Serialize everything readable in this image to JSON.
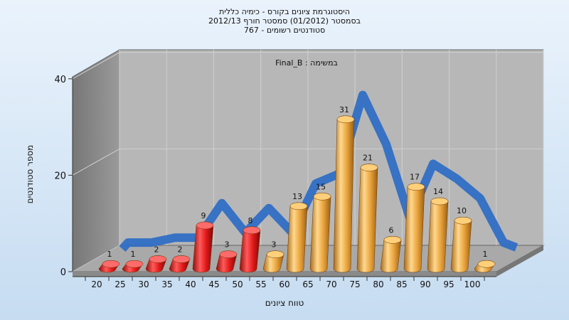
{
  "chart_data": {
    "type": "bar",
    "title_lines": [
      "היסטוגרמת ציונים בקורס - כימיה כללית",
      "בסמסטר  (01/2012)  סמסטר חורף 2012/13",
      "סטודנטים רשומים - 767"
    ],
    "series_label": "Final_B : במשימה",
    "xlabel": "טווח ציונים",
    "ylabel": "מספר סטודנטים",
    "categories": [
      "20",
      "25",
      "30",
      "35",
      "40",
      "45",
      "50",
      "55",
      "60",
      "65",
      "70",
      "75",
      "80",
      "85",
      "90",
      "95",
      "100"
    ],
    "values": [
      1,
      1,
      2,
      2,
      9,
      3,
      8,
      3,
      13,
      15,
      31,
      21,
      6,
      17,
      14,
      10,
      1
    ],
    "ylim": [
      0,
      40
    ],
    "yticks": [
      0,
      20,
      40
    ],
    "colors": {
      "fail": "#e01818",
      "pass": "#e8a33c",
      "trend": "#2f6ec4",
      "back_wall": "#b7b7b7",
      "side_wall": "#8c8c8c",
      "floor": "#a9a9a9"
    },
    "fail_below": 55
  }
}
